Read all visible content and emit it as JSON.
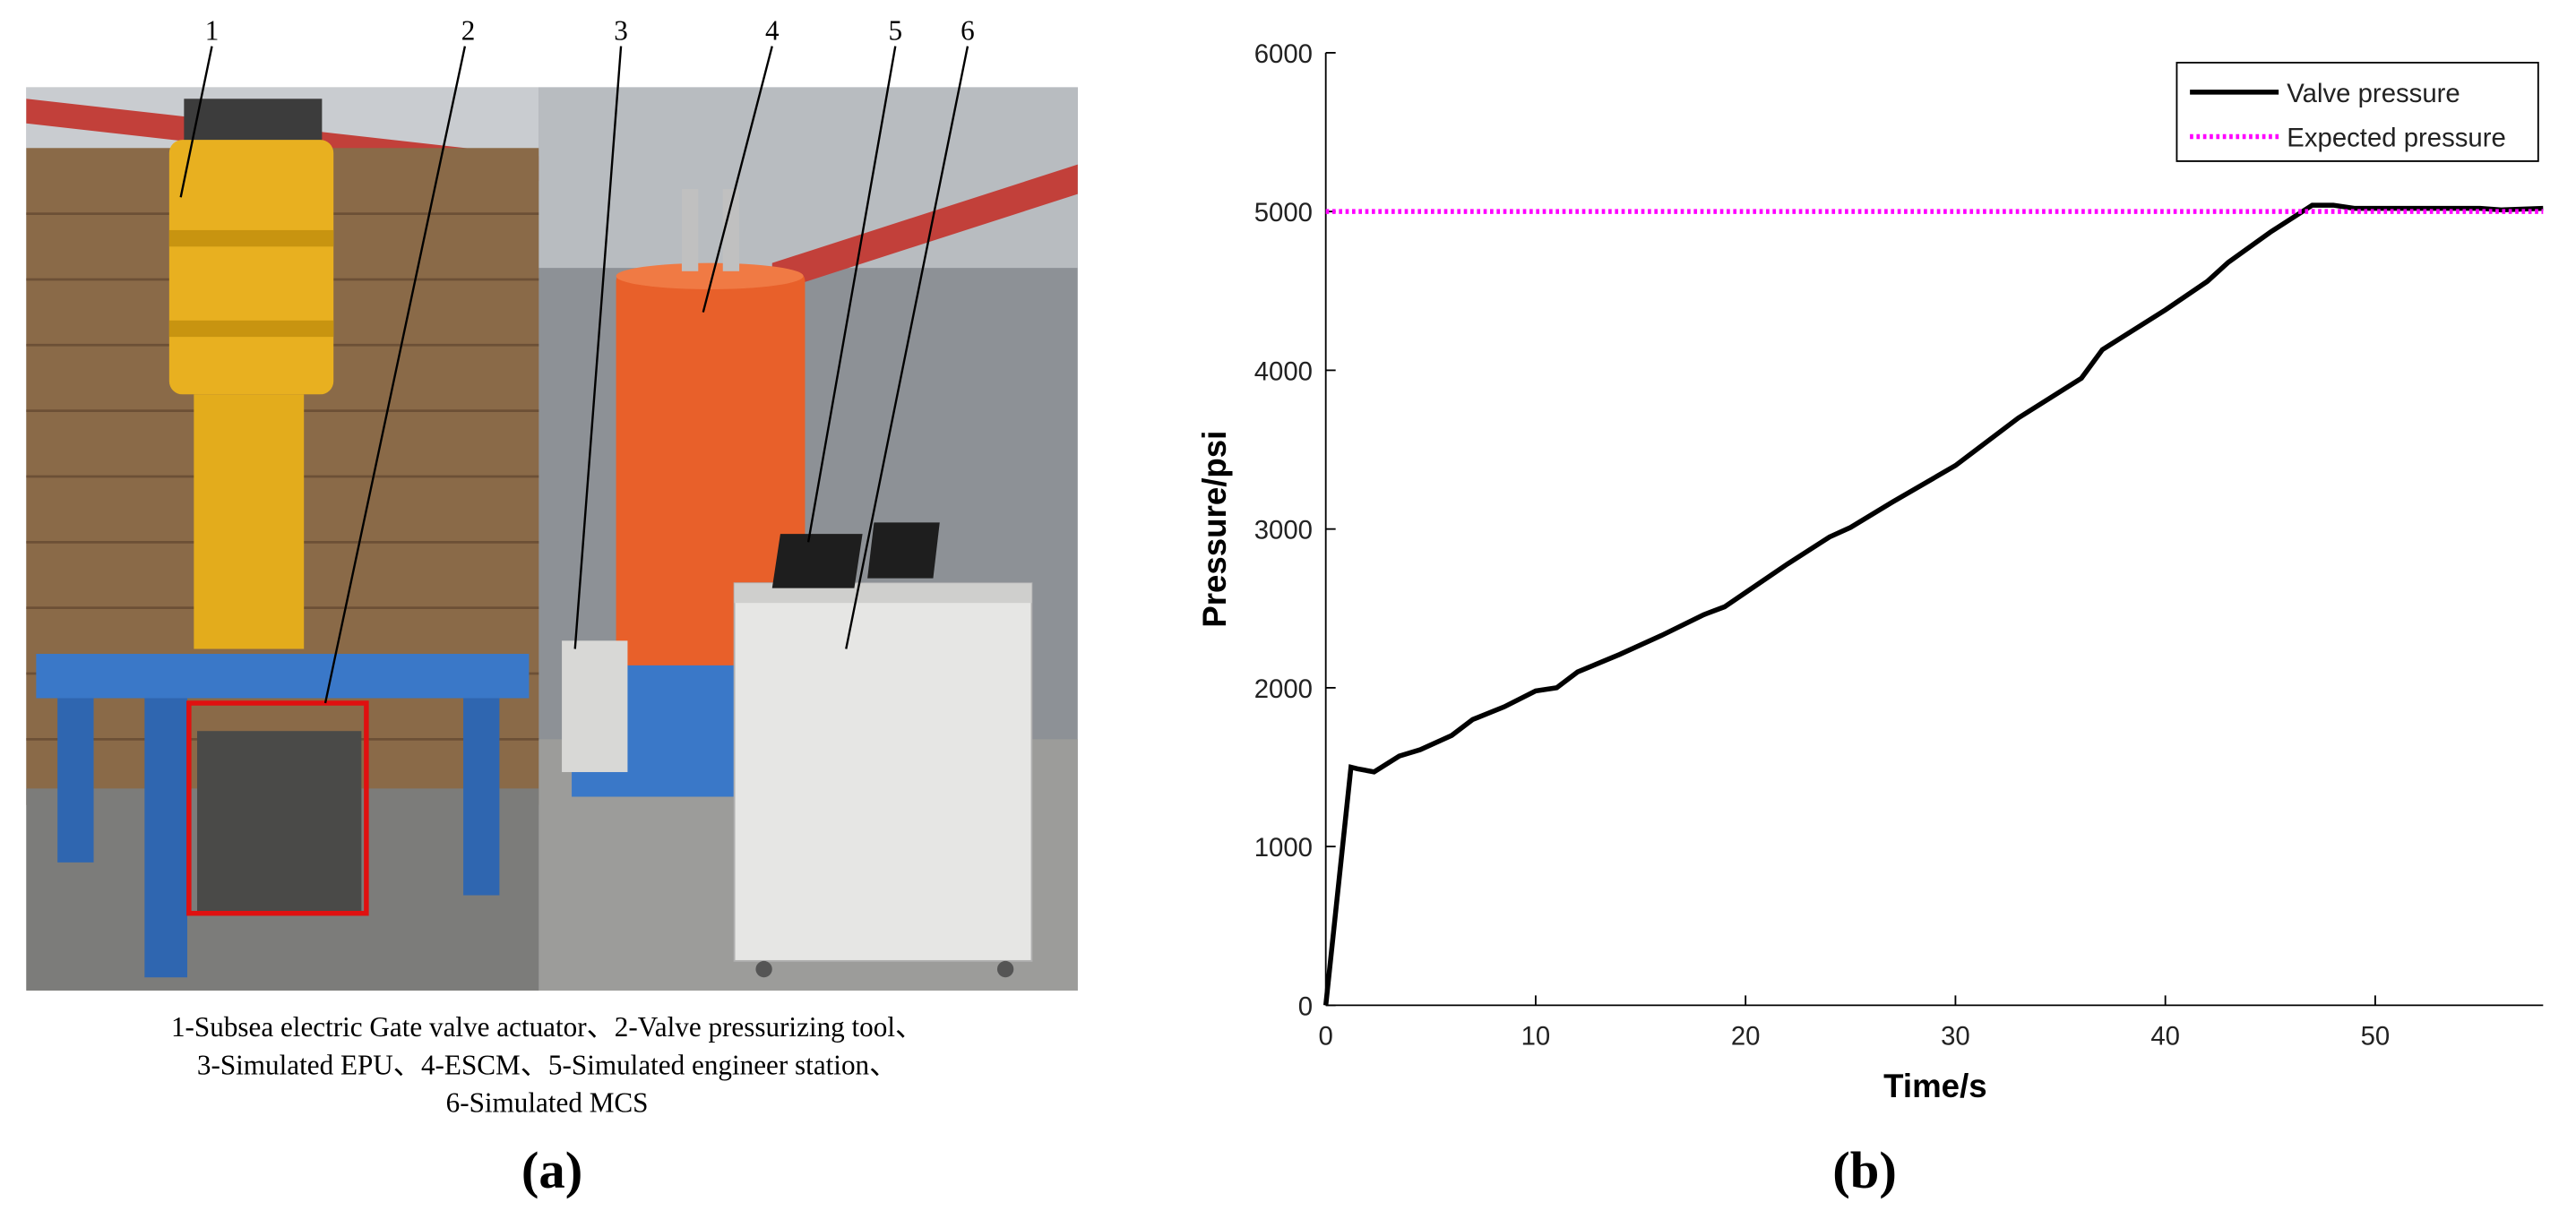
{
  "photo": {
    "labels": [
      "1",
      "2",
      "3",
      "4",
      "5",
      "6"
    ],
    "caption": [
      "1-Subsea electric Gate valve actuator、2-Valve pressurizing tool、",
      "3-Simulated EPU、4-ESCM、5-Simulated engineer station、",
      "6-Simulated MCS"
    ],
    "panel_label": "(a)"
  },
  "chart_data": {
    "type": "line",
    "panel_label": "(b)",
    "x_label": "Time/s",
    "y_label": "Pressure/psi",
    "xlim": [
      0,
      58
    ],
    "ylim": [
      0,
      6000
    ],
    "xticks": [
      0,
      10,
      20,
      30,
      40,
      50
    ],
    "yticks": [
      0,
      1000,
      2000,
      3000,
      4000,
      5000,
      6000
    ],
    "grid": false,
    "legend": "upper right",
    "series": [
      {
        "name": "Valve pressure",
        "color": "#000000",
        "style": "solid",
        "x": [
          0,
          1.2,
          1.5,
          2.3,
          3.5,
          4.5,
          6,
          7,
          8.5,
          10,
          11,
          12,
          14,
          16,
          18,
          19,
          20,
          22,
          24,
          25,
          27,
          30,
          33,
          36,
          37,
          40,
          42,
          43,
          45,
          47,
          48,
          49,
          52,
          55,
          56,
          58
        ],
        "values": [
          0,
          1500,
          1490,
          1470,
          1570,
          1610,
          1700,
          1800,
          1880,
          1980,
          2000,
          2100,
          2210,
          2330,
          2460,
          2510,
          2600,
          2780,
          2950,
          3010,
          3170,
          3400,
          3700,
          3950,
          4130,
          4380,
          4560,
          4680,
          4870,
          5040,
          5040,
          5020,
          5020,
          5020,
          5010,
          5020
        ]
      },
      {
        "name": "Expected pressure",
        "color": "#ff00ff",
        "style": "dotted",
        "x": [
          0,
          58
        ],
        "values": [
          5000,
          5000
        ]
      }
    ]
  }
}
